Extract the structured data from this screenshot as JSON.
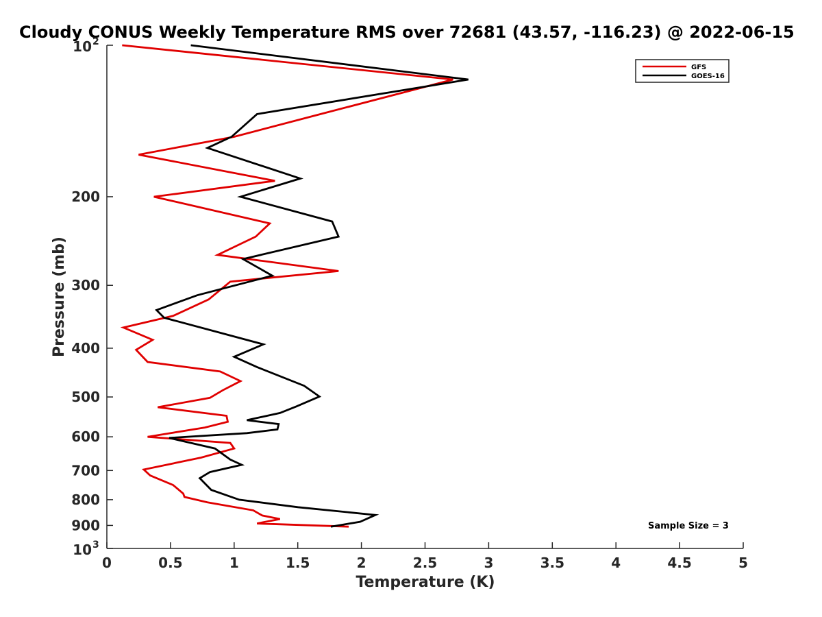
{
  "chart_data": {
    "type": "line",
    "title": "Cloudy CONUS Weekly Temperature RMS over 72681 (43.57, -116.23) @ 2022-06-15",
    "xlabel": "Temperature (K)",
    "ylabel": "Pressure (mb)",
    "xlim": [
      0,
      5
    ],
    "ylim": [
      100,
      1000
    ],
    "y_scale": "log",
    "y_reversed": true,
    "grid": false,
    "legend_position": "top-right",
    "x_ticks": [
      "0",
      "0.5",
      "1",
      "1.5",
      "2",
      "2.5",
      "3",
      "3.5",
      "4",
      "4.5",
      "5"
    ],
    "y_ticks": [
      {
        "value": 100,
        "base": "10",
        "exp": "2"
      },
      {
        "value": 200,
        "label": "200"
      },
      {
        "value": 300,
        "label": "300"
      },
      {
        "value": 400,
        "label": "400"
      },
      {
        "value": 500,
        "label": "500"
      },
      {
        "value": 600,
        "label": "600"
      },
      {
        "value": 700,
        "label": "700"
      },
      {
        "value": 800,
        "label": "800"
      },
      {
        "value": 900,
        "label": "900"
      },
      {
        "value": 1000,
        "base": "10",
        "exp": "3"
      }
    ],
    "annotation": "Sample Size = 3",
    "series": [
      {
        "name": "GFS",
        "color": "#e00000",
        "points": [
          [
            0.12,
            100
          ],
          [
            2.72,
            117
          ],
          [
            1.68,
            137
          ],
          [
            1.0,
            152
          ],
          [
            0.25,
            165
          ],
          [
            1.32,
            186
          ],
          [
            0.37,
            200
          ],
          [
            1.28,
            226
          ],
          [
            1.17,
            240
          ],
          [
            0.87,
            261
          ],
          [
            1.82,
            281
          ],
          [
            0.97,
            295
          ],
          [
            0.8,
            320
          ],
          [
            0.52,
            345
          ],
          [
            0.13,
            364
          ],
          [
            0.36,
            385
          ],
          [
            0.23,
            403
          ],
          [
            0.32,
            426
          ],
          [
            0.89,
            445
          ],
          [
            1.05,
            465
          ],
          [
            0.91,
            485
          ],
          [
            0.81,
            502
          ],
          [
            0.4,
            524
          ],
          [
            0.94,
            545
          ],
          [
            0.95,
            560
          ],
          [
            0.77,
            575
          ],
          [
            0.32,
            600
          ],
          [
            0.97,
            617
          ],
          [
            1.0,
            633
          ],
          [
            0.74,
            660
          ],
          [
            0.29,
            697
          ],
          [
            0.34,
            716
          ],
          [
            0.52,
            748
          ],
          [
            0.6,
            778
          ],
          [
            0.61,
            790
          ],
          [
            0.79,
            810
          ],
          [
            1.15,
            840
          ],
          [
            1.22,
            860
          ],
          [
            1.36,
            874
          ],
          [
            1.18,
            892
          ],
          [
            1.9,
            905
          ]
        ]
      },
      {
        "name": "GOES-16",
        "color": "#000000",
        "points": [
          [
            0.66,
            100
          ],
          [
            2.84,
            117
          ],
          [
            1.18,
            137
          ],
          [
            0.98,
            152
          ],
          [
            0.79,
            160
          ],
          [
            1.52,
            184
          ],
          [
            1.05,
            200
          ],
          [
            1.77,
            224
          ],
          [
            1.82,
            240
          ],
          [
            1.07,
            266
          ],
          [
            1.3,
            287
          ],
          [
            0.71,
            314
          ],
          [
            0.39,
            336
          ],
          [
            0.45,
            348
          ],
          [
            1.23,
            393
          ],
          [
            1.0,
            416
          ],
          [
            1.18,
            436
          ],
          [
            1.55,
            475
          ],
          [
            1.67,
            499
          ],
          [
            1.49,
            522
          ],
          [
            1.36,
            538
          ],
          [
            1.1,
            556
          ],
          [
            1.35,
            566
          ],
          [
            1.34,
            580
          ],
          [
            1.1,
            590
          ],
          [
            0.49,
            603
          ],
          [
            0.85,
            633
          ],
          [
            0.97,
            666
          ],
          [
            1.06,
            682
          ],
          [
            0.81,
            705
          ],
          [
            0.73,
            725
          ],
          [
            0.82,
            765
          ],
          [
            1.04,
            800
          ],
          [
            1.5,
            828
          ],
          [
            2.11,
            858
          ],
          [
            1.99,
            885
          ],
          [
            1.76,
            905
          ]
        ]
      }
    ]
  }
}
